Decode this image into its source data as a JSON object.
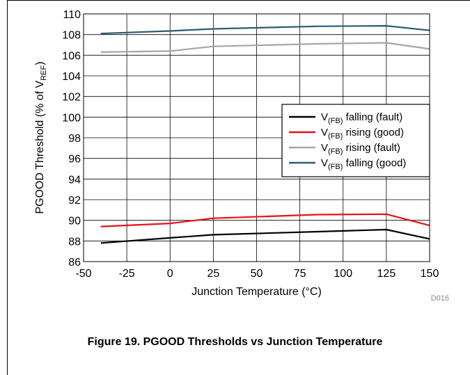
{
  "chart_data": {
    "type": "line",
    "title": "",
    "xlabel": "Junction Temperature (°C)",
    "ylabel_parts": [
      "PGOOD Threshold (% of V",
      "REF",
      ")"
    ],
    "xlim": [
      -50,
      150
    ],
    "ylim": [
      86,
      110
    ],
    "xticks": [
      -50,
      -25,
      0,
      25,
      50,
      75,
      100,
      125,
      150
    ],
    "yticks": [
      86,
      88,
      90,
      92,
      94,
      96,
      98,
      100,
      102,
      104,
      106,
      108,
      110
    ],
    "grid": true,
    "legend_position": "center-right",
    "series": [
      {
        "name_parts": [
          "V",
          "(FB)",
          " falling (fault)"
        ],
        "color": "#000000",
        "x": [
          -40,
          0,
          25,
          85,
          125,
          150
        ],
        "y": [
          87.8,
          88.3,
          88.6,
          88.9,
          89.1,
          88.2
        ]
      },
      {
        "name_parts": [
          "V",
          "(FB)",
          " rising (good)"
        ],
        "color": "#e8101a",
        "x": [
          -40,
          0,
          25,
          85,
          125,
          150
        ],
        "y": [
          89.4,
          89.7,
          90.2,
          90.55,
          90.6,
          89.5
        ]
      },
      {
        "name_parts": [
          "V",
          "(FB)",
          " rising (fault)"
        ],
        "color": "#a6a6a6",
        "x": [
          -40,
          0,
          25,
          85,
          125,
          150
        ],
        "y": [
          106.3,
          106.4,
          106.85,
          107.1,
          107.2,
          106.6
        ]
      },
      {
        "name_parts": [
          "V",
          "(FB)",
          " falling (good)"
        ],
        "color": "#2e5a72",
        "x": [
          -40,
          0,
          25,
          85,
          125,
          150
        ],
        "y": [
          108.1,
          108.35,
          108.55,
          108.8,
          108.85,
          108.4
        ]
      }
    ]
  },
  "figure_code": "D016",
  "caption": "Figure 19. PGOOD Thresholds vs Junction Temperature"
}
